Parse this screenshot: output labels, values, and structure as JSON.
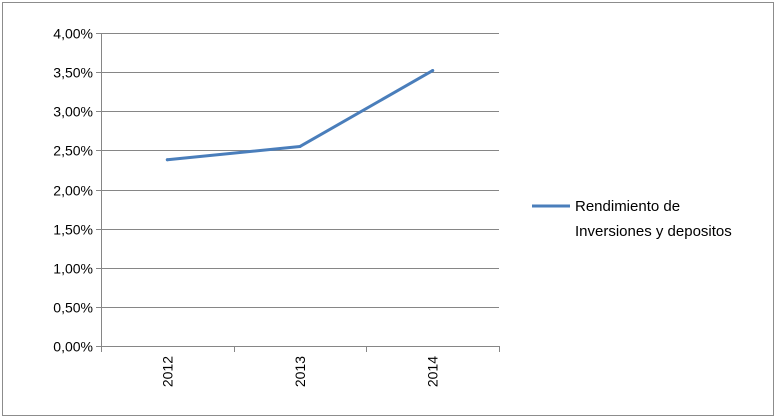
{
  "chart_data": {
    "type": "line",
    "categories": [
      "2012",
      "2013",
      "2014"
    ],
    "series": [
      {
        "name": "Rendimiento de Inversiones y depositos",
        "values": [
          0.0238,
          0.0255,
          0.0352
        ],
        "color": "#4a7ebb"
      }
    ],
    "ylim": [
      0,
      0.04
    ],
    "yticks": [
      0,
      0.005,
      0.01,
      0.015,
      0.02,
      0.025,
      0.03,
      0.035,
      0.04
    ],
    "ytick_labels": [
      "0,00%",
      "0,50%",
      "1,00%",
      "1,50%",
      "2,00%",
      "2,50%",
      "3,00%",
      "3,50%",
      "4,00%"
    ],
    "xtick_rotation": "vertical",
    "grid": "horizontal",
    "legend": {
      "position": "right",
      "lines": [
        "Rendimiento de",
        "Inversiones y depositos"
      ]
    },
    "colors": {
      "grid": "#868686",
      "axis": "#868686",
      "series": "#4a7ebb"
    }
  }
}
